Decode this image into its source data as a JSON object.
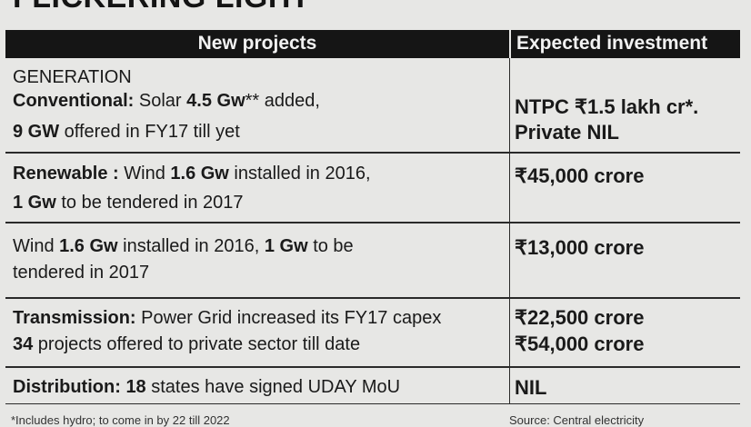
{
  "title": "FLICKERING LIGHT",
  "header": {
    "projects": "New projects",
    "investment": "Expected investment"
  },
  "rows": {
    "generation": {
      "section": "GENERATION",
      "conv_label": "Conventional:",
      "conv_a": " Solar ",
      "conv_b": "4.5 Gw",
      "conv_c": "** added,",
      "conv_d": "9 GW",
      "conv_e": " offered in FY17 till yet",
      "inv1": "NTPC ₹1.5 lakh cr*.",
      "inv2": "Private NIL"
    },
    "renewable": {
      "label": "Renewable :",
      "a": " Wind ",
      "b": "1.6 Gw",
      "c": " installed in 2016,",
      "d": "1 Gw",
      "e": " to be tendered in 2017",
      "inv": "₹45,000 crore"
    },
    "wind": {
      "a": "Wind ",
      "b": "1.6 Gw",
      "c": " installed in 2016, ",
      "d": "1 Gw",
      "e": " to be",
      "f": "tendered in 2017",
      "inv": "₹13,000 crore"
    },
    "transmission": {
      "label": "Transmission:",
      "a": " Power Grid increased  its FY17 capex",
      "b": "34",
      "c": " projects offered to private sector till date",
      "inv1": "₹22,500 crore",
      "inv2": "₹54,000 crore"
    },
    "distribution": {
      "label": "Distribution:",
      "a": " ",
      "b": "18",
      "c": " states have signed UDAY MoU",
      "inv": "NIL"
    }
  },
  "footer": {
    "left": "*Includes hydro; to come in by 22 till 2022",
    "right": "Source: Central electricity"
  }
}
